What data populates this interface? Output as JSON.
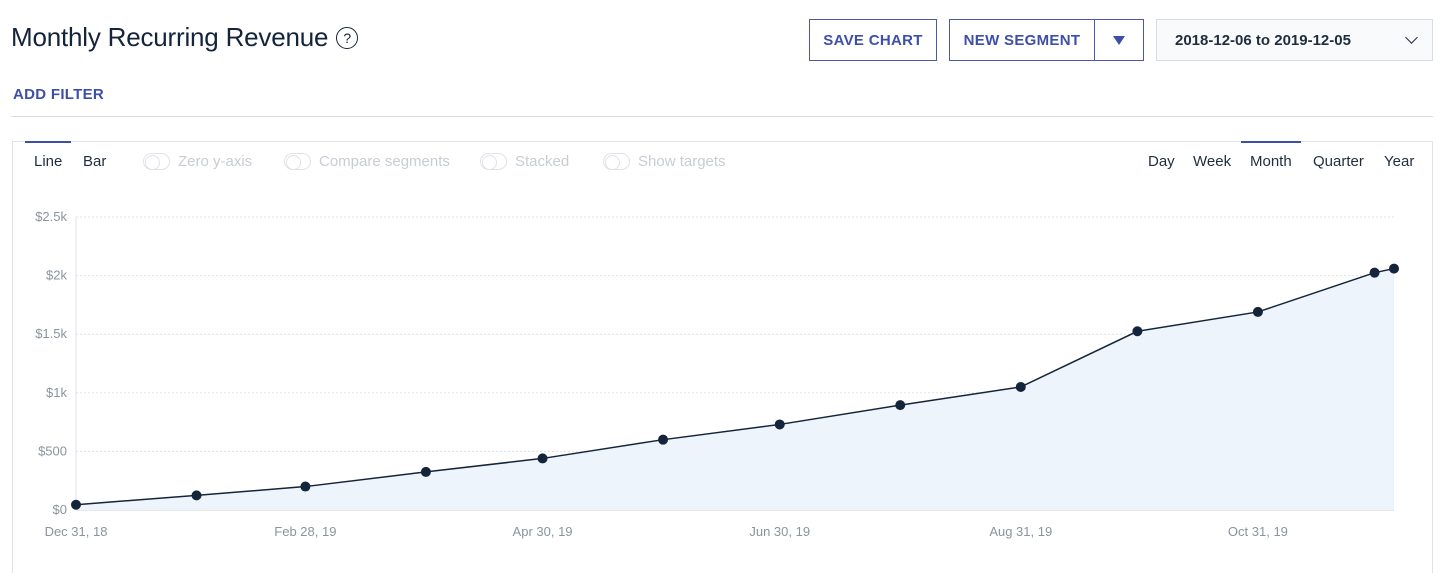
{
  "header": {
    "title": "Monthly Recurring Revenue",
    "help_icon": "?",
    "save_chart_label": "SAVE CHART",
    "new_segment_label": "NEW SEGMENT",
    "date_range": "2018-12-06 to 2019-12-05"
  },
  "filters": {
    "add_filter_label": "ADD FILTER"
  },
  "chart_controls": {
    "types": [
      "Line",
      "Bar"
    ],
    "active_type": "Line",
    "toggles": [
      "Zero y-axis",
      "Compare segments",
      "Stacked",
      "Show targets"
    ],
    "periods": [
      "Day",
      "Week",
      "Month",
      "Quarter",
      "Year"
    ],
    "active_period": "Month"
  },
  "colors": {
    "accent": "#3d4fa8",
    "line": "#14243a",
    "area": "#eef4fb",
    "grid": "#dfe3e8"
  },
  "chart_data": {
    "type": "area",
    "x": [
      "2018-12-31",
      "2019-01-31",
      "2019-02-28",
      "2019-03-31",
      "2019-04-30",
      "2019-05-31",
      "2019-06-30",
      "2019-07-31",
      "2019-08-31",
      "2019-09-30",
      "2019-10-31",
      "2019-11-30",
      "2019-12-05"
    ],
    "values": [
      45,
      125,
      200,
      325,
      440,
      600,
      730,
      895,
      1050,
      1525,
      1690,
      2025,
      2060
    ],
    "xtick_labels": [
      "Dec 31, 18",
      "Feb 28, 19",
      "Apr 30, 19",
      "Jun 30, 19",
      "Aug 31, 19",
      "Oct 31, 19"
    ],
    "xtick_index": [
      0,
      2,
      4,
      6,
      8,
      10
    ],
    "yticks": [
      0,
      500,
      1000,
      1500,
      2000,
      2500
    ],
    "ytick_labels": [
      "$0",
      "$500",
      "$1k",
      "$1.5k",
      "$2k",
      "$2.5k"
    ],
    "ylim": [
      0,
      2500
    ],
    "grid": true
  }
}
